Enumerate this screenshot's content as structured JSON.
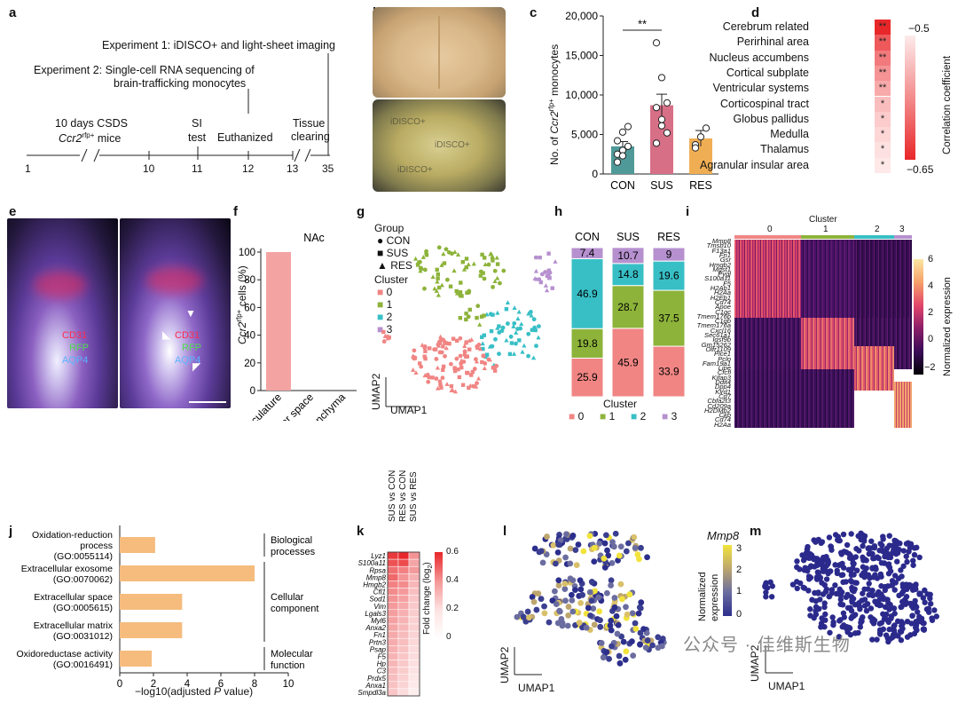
{
  "panels": {
    "a": {
      "letter": "a",
      "exp1": "Experiment 1: iDISCO+ and light-sheet imaging",
      "exp2_line1": "Experiment 2: Single-cell RNA sequencing of",
      "exp2_line2": "brain-trafficking monocytes",
      "csds_line1": "10 days CSDS",
      "csds_line2_italic": "Ccr2",
      "csds_line2_sup": "rfp+",
      "csds_line2_rest": " mice",
      "si_line1": "SI",
      "si_line2": "test",
      "euthanized": "Euthanized",
      "tissue_line1": "Tissue",
      "tissue_line2": "clearing",
      "ticks": [
        "1",
        "10",
        "11",
        "12",
        "13",
        "35"
      ]
    },
    "b": {
      "letter": "b",
      "stamp": "iDISCO+",
      "caption": "iDISCO+"
    },
    "c": {
      "letter": "c",
      "ylabel_pre": "No. of ",
      "ylabel_italic": "Ccr2",
      "ylabel_sup": "rfp+",
      "ylabel_post": " monocytes",
      "significance": "**"
    },
    "d": {
      "letter": "d",
      "colorbar_title": "Correlation coefficient",
      "colorbar_top": "−0.5",
      "colorbar_bottom": "−0.65",
      "regions": [
        {
          "name": "Cerebrum related",
          "stars": "**",
          "color": "#e8272a"
        },
        {
          "name": "Perirhinal area",
          "stars": "**",
          "color": "#ee5a5c"
        },
        {
          "name": "Nucleus accumbens",
          "stars": "**",
          "color": "#f27a7c"
        },
        {
          "name": "Cortical subplate",
          "stars": "**",
          "color": "#f59395"
        },
        {
          "name": "Ventricular systems",
          "stars": "**",
          "color": "#f8aaab"
        },
        {
          "name": "Corticospinal tract",
          "stars": "*",
          "color": "#fabdbe"
        },
        {
          "name": "Globus pallidus",
          "stars": "*",
          "color": "#fccbcc"
        },
        {
          "name": "Medulla",
          "stars": "*",
          "color": "#fdd6d6"
        },
        {
          "name": "Thalamus",
          "stars": "*",
          "color": "#fde0e0"
        },
        {
          "name": "Agranular insular area",
          "stars": "*",
          "color": "#fee8e8"
        }
      ]
    },
    "e": {
      "letter": "e",
      "labels": [
        "CD31",
        "RFP",
        "AQP4"
      ]
    },
    "f": {
      "letter": "f",
      "region": "NAc",
      "ylabel_italic": "Ccr2",
      "ylabel_sup": "rfp+",
      "ylabel_post": " cells (%)"
    },
    "g": {
      "letter": "g",
      "group_title": "Group",
      "groups": [
        "CON",
        "SUS",
        "RES"
      ],
      "cluster_title": "Cluster",
      "clusters": [
        "0",
        "1",
        "2",
        "3"
      ],
      "x_axis": "UMAP1",
      "y_axis": "UMAP2"
    },
    "h": {
      "letter": "h",
      "legend_title": "Cluster"
    },
    "i": {
      "letter": "i",
      "top_title": "Cluster",
      "clusters": [
        "0",
        "1",
        "2",
        "3"
      ],
      "colorbar_title": "Normalized expression",
      "colorbar_ticks": [
        "6",
        "4",
        "2",
        "0",
        "−2"
      ],
      "genes": [
        "Mmp8",
        "Tmsb10",
        "F13a1",
        "Fn1",
        "Gsr",
        "Hmgb2",
        "Mgst1",
        "Pygl",
        "S100a11",
        "F5",
        "H2Ab1",
        "H2Aa",
        "H2Eb1",
        "Cd74",
        "Apoe",
        "C1qc",
        "Tmem176b",
        "C1qb",
        "Tmem176a",
        "Cxcl16",
        "Sec61a1",
        "Igsf9b",
        "Gm15262",
        "Olfr1109",
        "Plce1",
        "Pclo",
        "Fam19a1",
        "Lipe",
        "Cfcfl",
        "Kifap3",
        "Ddit4",
        "Dpp4",
        "Klrd1",
        "Cd7",
        "Cbfa2t3",
        "Cd209a",
        "H2DMb2",
        "Ckb",
        "Cd74",
        "H2Aa"
      ]
    },
    "j": {
      "letter": "j",
      "xlabel_pre": "−log10(adjusted ",
      "xlabel_italic": "P",
      "xlabel_post": " value)",
      "terms": [
        {
          "line1": "Oxidation-reduction",
          "line2": "process",
          "line3": "(GO:0055114)"
        },
        {
          "line1": "Extracellular exosome",
          "line2": "(GO:0070062)",
          "line3": ""
        },
        {
          "line1": "Extracellular space",
          "line2": "(GO:0005615)",
          "line3": ""
        },
        {
          "line1": "Extracellular matrix",
          "line2": "(GO:0031012)",
          "line3": ""
        },
        {
          "line1": "Oxidoreductase activity",
          "line2": "(GO:0016491)",
          "line3": ""
        }
      ],
      "categories": [
        {
          "line1": "Biological",
          "line2": "processes"
        },
        {
          "line1": "Cellular",
          "line2": "component"
        },
        {
          "line1": "Molecular",
          "line2": "function"
        }
      ]
    },
    "k": {
      "letter": "k",
      "columns": [
        "SUS vs CON",
        "RES vs CON",
        "SUS vs RES"
      ],
      "genes": [
        "Lyz1",
        "S100a11",
        "Rpsa",
        "Mmp8",
        "Hmgb2",
        "Cfl1",
        "Sod1",
        "Vim",
        "Lgals3",
        "Myl6",
        "Anxa2",
        "Fn1",
        "Prtn3",
        "Psap",
        "F5",
        "Hp",
        "C3",
        "Prdx5",
        "Anxa1",
        "Smpdl3a"
      ],
      "colorbar_title": "Fold change (log",
      "colorbar_sub": "2",
      "colorbar_close": ")",
      "colorbar_ticks": [
        "0.6",
        "0.4",
        "0.2",
        "0"
      ]
    },
    "l": {
      "letter": "l",
      "gene": "Mmp8",
      "colorbar_title1": "Normalized",
      "colorbar_title2": "expression",
      "colorbar_ticks": [
        "3",
        "2",
        "1",
        "0"
      ],
      "x_axis": "UMAP1",
      "y_axis": "UMAP2"
    },
    "m": {
      "letter": "m",
      "x_axis": "UMAP1",
      "y_axis": "UMAP2"
    }
  },
  "watermark": "公众号 · 佳维斯生物",
  "chart_data": [
    {
      "id": "c",
      "type": "bar",
      "categories": [
        "CON",
        "SUS",
        "RES"
      ],
      "values": [
        3500,
        8700,
        4500
      ],
      "errors": [
        600,
        1400,
        1000
      ],
      "colors": [
        "#4f9a98",
        "#d76f86",
        "#f0ae54"
      ],
      "points": [
        [
          2500,
          3000,
          3500,
          4200,
          5300,
          6000,
          1500,
          2300
        ],
        [
          16600,
          12200,
          9000,
          8400,
          6100,
          5200,
          3900,
          6900
        ],
        [
          3700,
          4700,
          5800,
          3300
        ]
      ],
      "ylim": [
        0,
        20000
      ],
      "yticks": [
        "0",
        "5,000",
        "10,000",
        "15,000",
        "20,000"
      ]
    },
    {
      "id": "f",
      "type": "bar",
      "categories": [
        "Vasculature",
        "Perivascular space",
        "Parenchyma"
      ],
      "values": [
        100,
        0,
        0
      ],
      "color": "#f4a3a3",
      "ylim": [
        0,
        100
      ],
      "yticks": [
        "0",
        "20",
        "40",
        "60",
        "80",
        "100"
      ]
    },
    {
      "id": "h",
      "type": "bar",
      "stacked": true,
      "categories": [
        "CON",
        "SUS",
        "RES"
      ],
      "series": [
        {
          "name": "0",
          "color": "#f08583",
          "values": [
            25.9,
            45.9,
            33.9
          ]
        },
        {
          "name": "1",
          "color": "#8db33a",
          "values": [
            19.8,
            28.7,
            37.5
          ]
        },
        {
          "name": "2",
          "color": "#38bfc6",
          "values": [
            46.9,
            14.8,
            19.6
          ]
        },
        {
          "name": "3",
          "color": "#b690cf",
          "values": [
            7.4,
            10.7,
            9
          ]
        }
      ]
    },
    {
      "id": "j",
      "type": "bar",
      "orientation": "horizontal",
      "categories": [
        "Oxidation-reduction process (GO:0055114)",
        "Extracellular exosome (GO:0070062)",
        "Extracellular space (GO:0005615)",
        "Extracellular matrix (GO:0031012)",
        "Oxidoreductase activity (GO:0016491)"
      ],
      "values": [
        2.1,
        8.0,
        3.7,
        3.7,
        1.9
      ],
      "color": "#f5bc7e",
      "xlim": [
        0,
        10
      ],
      "xticks": [
        "0",
        "2",
        "4",
        "6",
        "8",
        "10"
      ]
    },
    {
      "id": "k",
      "type": "heatmap",
      "columns": [
        "SUS vs CON",
        "RES vs CON",
        "SUS vs RES"
      ],
      "rows": [
        "Lyz1",
        "S100a11",
        "Rpsa",
        "Mmp8",
        "Hmgb2",
        "Cfl1",
        "Sod1",
        "Vim",
        "Lgals3",
        "Myl6",
        "Anxa2",
        "Fn1",
        "Prtn3",
        "Psap",
        "F5",
        "Hp",
        "C3",
        "Prdx5",
        "Anxa1",
        "Smpdl3a"
      ],
      "values": [
        [
          0.55,
          0.62,
          0.3
        ],
        [
          0.48,
          0.5,
          0.25
        ],
        [
          0.4,
          0.35,
          0.28
        ],
        [
          0.42,
          0.3,
          0.22
        ],
        [
          0.35,
          0.32,
          0.2
        ],
        [
          0.32,
          0.28,
          0.18
        ],
        [
          0.3,
          0.26,
          0.16
        ],
        [
          0.28,
          0.24,
          0.15
        ],
        [
          0.27,
          0.22,
          0.14
        ],
        [
          0.26,
          0.21,
          0.13
        ],
        [
          0.25,
          0.2,
          0.13
        ],
        [
          0.24,
          0.19,
          0.12
        ],
        [
          0.23,
          0.18,
          0.11
        ],
        [
          0.22,
          0.17,
          0.1
        ],
        [
          0.21,
          0.16,
          0.1
        ],
        [
          0.2,
          0.15,
          0.09
        ],
        [
          0.19,
          0.14,
          0.08
        ],
        [
          0.18,
          0.13,
          0.07
        ],
        [
          0.17,
          0.12,
          0.06
        ],
        [
          0.16,
          0.1,
          0.05
        ]
      ],
      "vmin": 0,
      "vmax": 0.6
    }
  ]
}
